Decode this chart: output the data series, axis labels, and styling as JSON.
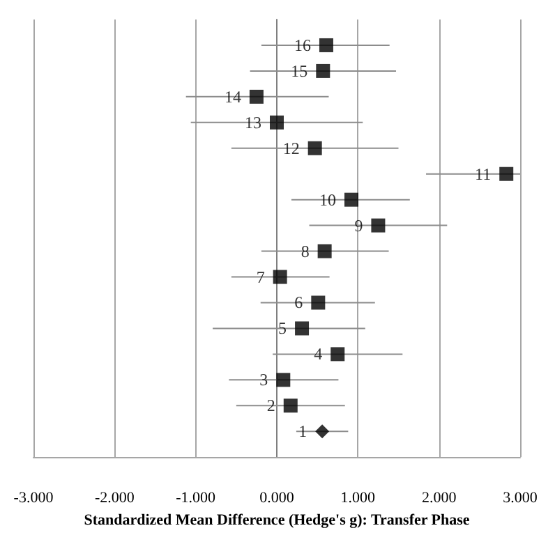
{
  "chart_data": {
    "type": "scatter",
    "orientation": "horizontal",
    "xlabel": "Standardized Mean Difference (Hedge's g): Transfer Phase",
    "categories": [
      null,
      "16",
      "15",
      "14",
      "13",
      "12",
      "11",
      "10",
      "9",
      "8",
      "7",
      "6",
      "5",
      "4",
      "3",
      "2",
      "1",
      null
    ],
    "xlim": [
      -3,
      3
    ],
    "xticks": [
      {
        "value": -3,
        "label": "-3.000"
      },
      {
        "value": -2,
        "label": "-2.000"
      },
      {
        "value": -1,
        "label": "-1.000"
      },
      {
        "value": 0,
        "label": "0.000"
      },
      {
        "value": 1,
        "label": "1.000"
      },
      {
        "value": 2,
        "label": "2.000"
      },
      {
        "value": 3,
        "label": "3.000"
      }
    ],
    "grid": "x",
    "series": [
      {
        "color": "#000000",
        "marker": "square",
        "values": [
          null,
          0.61,
          0.57,
          -0.25,
          0.0,
          0.47,
          2.83,
          0.92,
          1.25,
          0.59,
          0.04,
          0.51,
          0.31,
          0.75,
          0.08,
          0.17,
          null,
          null
        ],
        "errors": [
          null,
          [
            -0.19,
            1.39
          ],
          [
            -0.33,
            1.47
          ],
          [
            -1.12,
            0.64
          ],
          [
            -1.06,
            1.06
          ],
          [
            -0.56,
            1.5
          ],
          [
            1.84,
            3.0
          ],
          [
            0.18,
            1.64
          ],
          [
            0.4,
            2.1
          ],
          [
            -0.19,
            1.38
          ],
          [
            -0.56,
            0.65
          ],
          [
            -0.2,
            1.21
          ],
          [
            -0.79,
            1.09
          ],
          [
            -0.05,
            1.55
          ],
          [
            -0.59,
            0.76
          ],
          [
            -0.5,
            0.84
          ],
          null,
          null
        ]
      },
      {
        "color": "#000000",
        "marker": "diamond",
        "values": [
          null,
          null,
          null,
          null,
          null,
          null,
          null,
          null,
          null,
          null,
          null,
          null,
          null,
          null,
          null,
          null,
          0.56,
          null
        ],
        "errors": [
          null,
          null,
          null,
          null,
          null,
          null,
          null,
          null,
          null,
          null,
          null,
          null,
          null,
          null,
          null,
          null,
          [
            0.24,
            0.88
          ],
          null
        ]
      }
    ]
  }
}
